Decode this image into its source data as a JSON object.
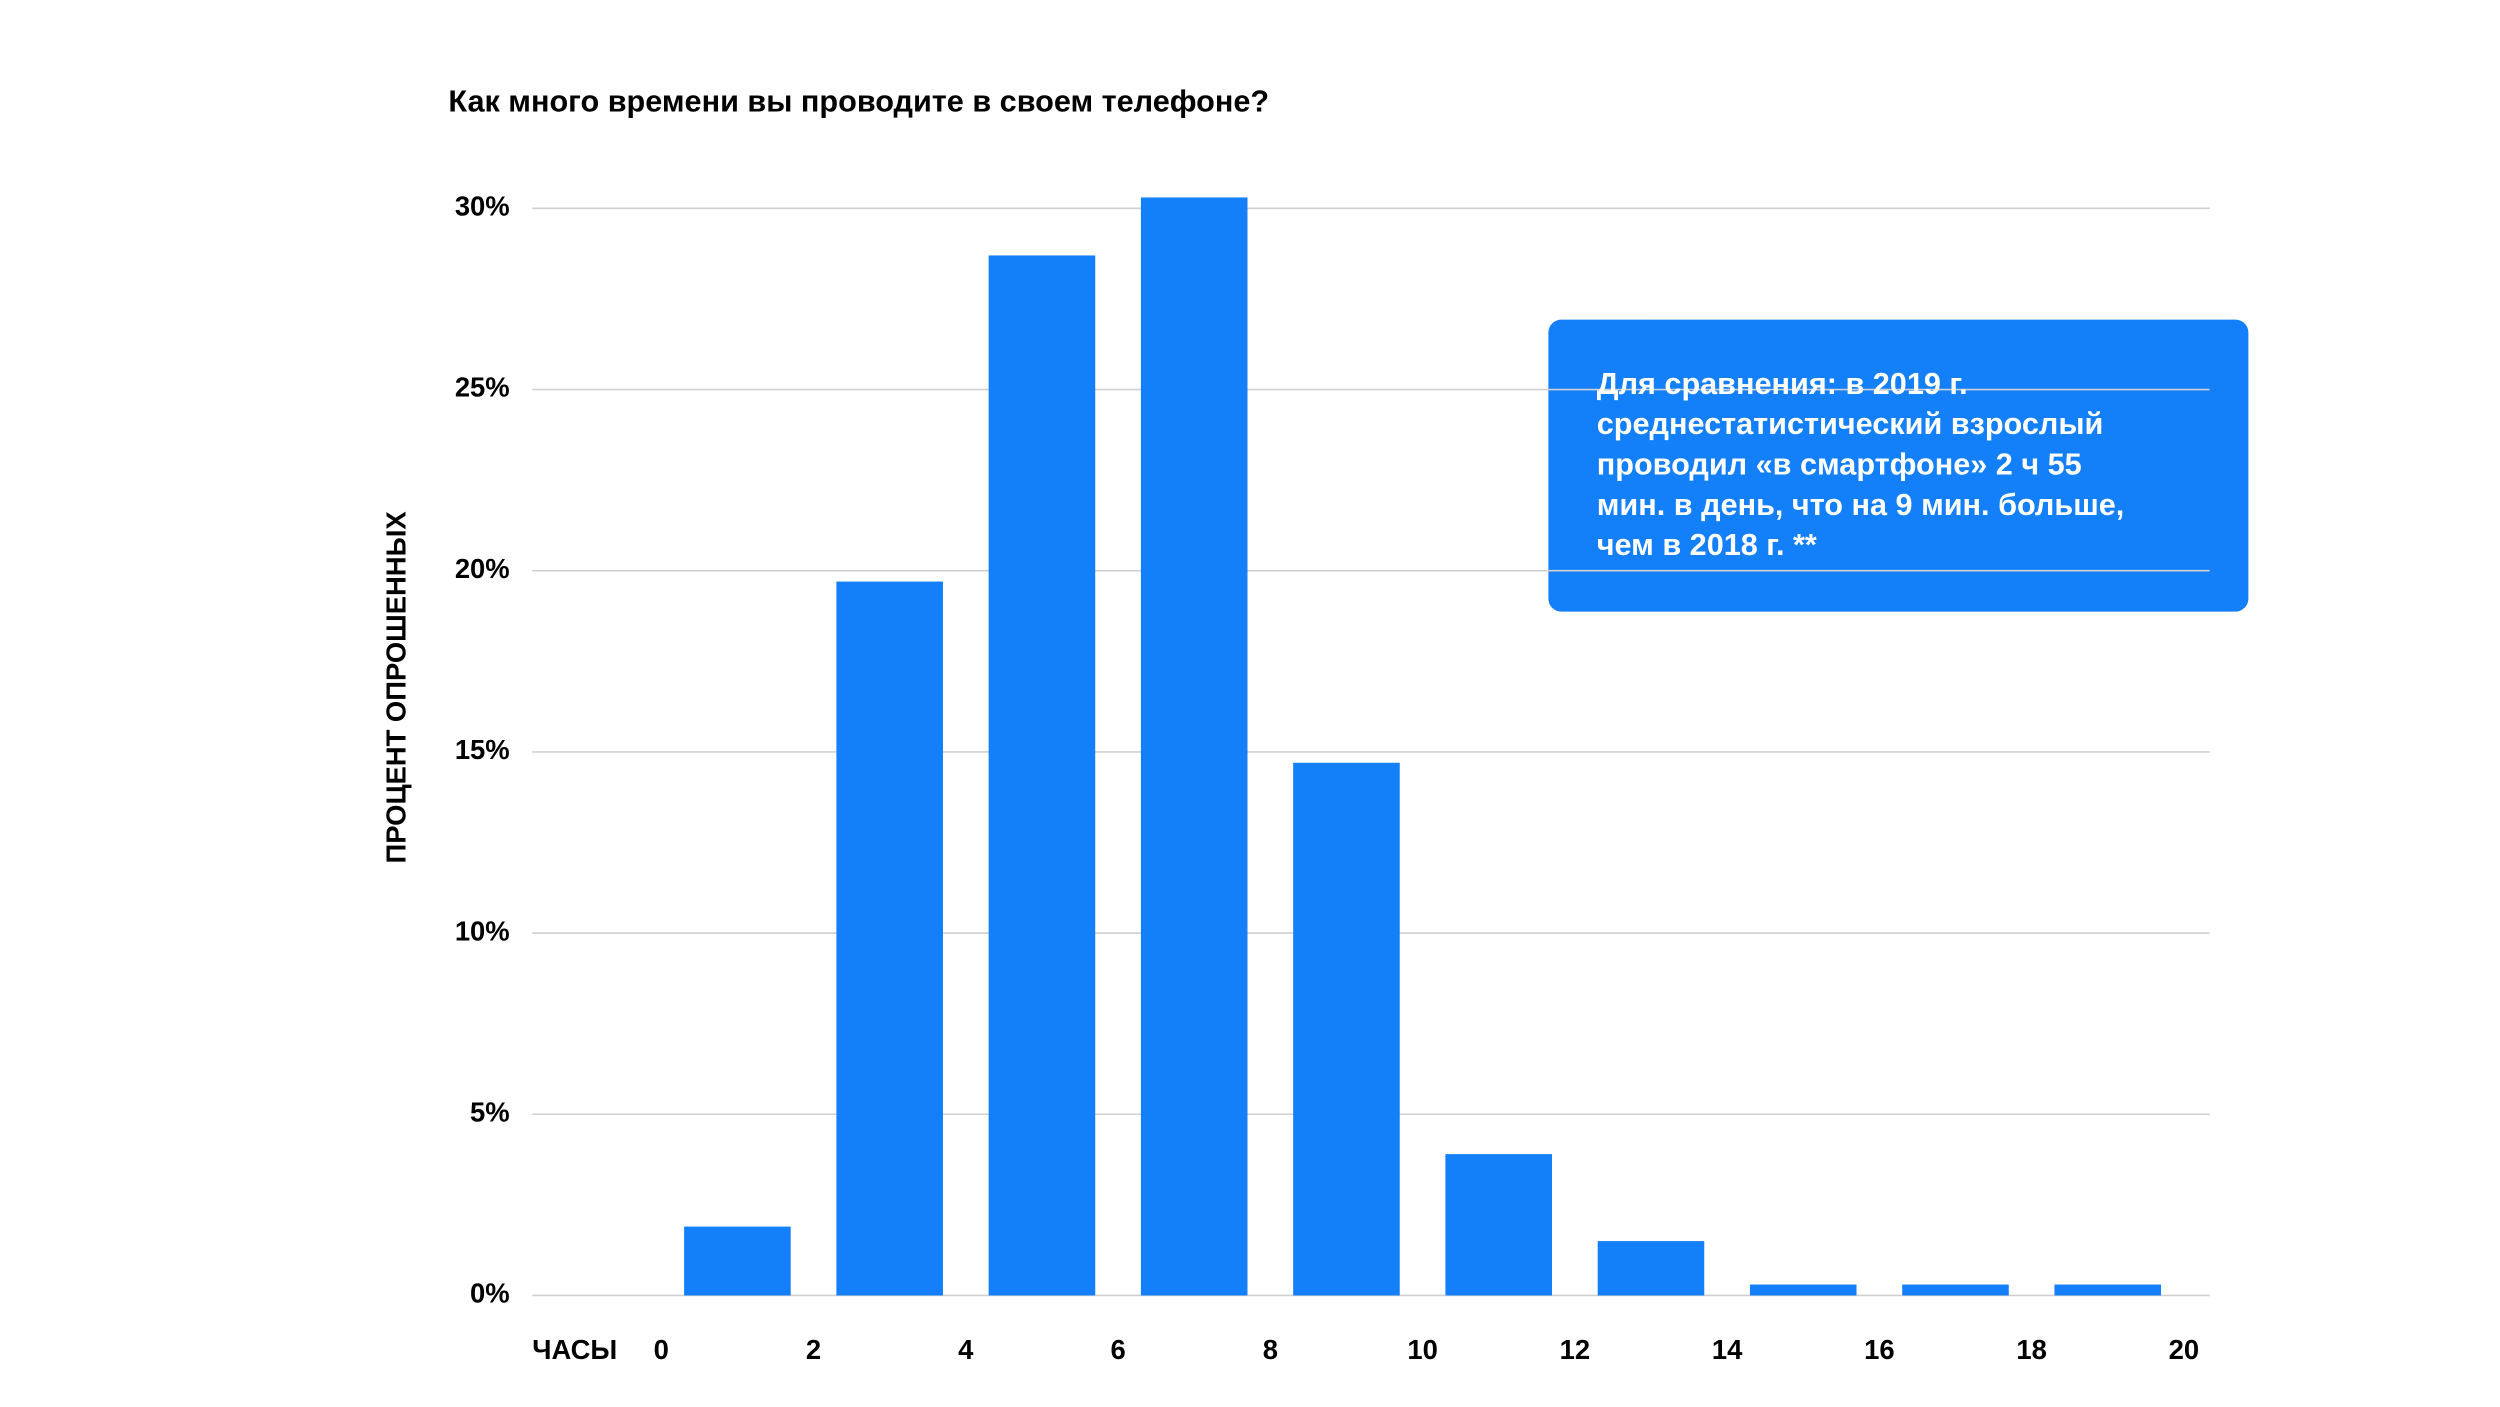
{
  "chart_data": {
    "type": "histogram",
    "title": "Как много времени вы проводите в своем телефоне?",
    "x_label": "ЧАСЫ",
    "y_label": "ПРОЦЕНТ ОПРОШЕННЫХ",
    "bins": [
      0,
      2,
      4,
      6,
      8,
      10,
      12,
      14,
      16,
      18,
      20
    ],
    "values": [
      1.9,
      19.7,
      28.7,
      30.3,
      14.7,
      3.9,
      1.5,
      0.3,
      0.3,
      0.3
    ],
    "color": "#137ff8",
    "xlim": [
      0,
      20
    ],
    "xticks": [
      0,
      2,
      4,
      6,
      8,
      10,
      12,
      14,
      16,
      18,
      20
    ],
    "ylim": [
      0,
      30
    ],
    "yticks": [
      {
        "value": 0,
        "label": "0%"
      },
      {
        "value": 5,
        "label": "5%"
      },
      {
        "value": 10,
        "label": "10%"
      },
      {
        "value": 15,
        "label": "15%"
      },
      {
        "value": 20,
        "label": "20%"
      },
      {
        "value": 25,
        "label": "25%"
      },
      {
        "value": 30,
        "label": "30%"
      }
    ],
    "grid": true,
    "annotation": [
      "Для сравнения: в 2019 г.",
      "среднестатистический взрослый",
      "проводил «в смартфоне» 2 ч 55",
      "мин. в день, что на 9 мин. больше,",
      "чем в 2018 г. **"
    ]
  }
}
